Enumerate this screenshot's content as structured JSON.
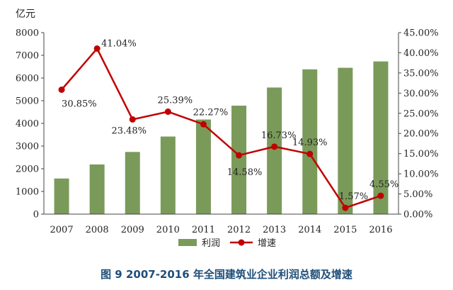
{
  "chart_data": {
    "type": "bar",
    "title": "图 9   2007-2016 年全国建筑业企业利润总额及增速",
    "categories": [
      "2007",
      "2008",
      "2009",
      "2010",
      "2011",
      "2012",
      "2013",
      "2014",
      "2015",
      "2016"
    ],
    "left_axis": {
      "unit": "亿元",
      "ylim": [
        0,
        8000
      ],
      "ticks": [
        "0",
        "1000",
        "2000",
        "3000",
        "4000",
        "5000",
        "6000",
        "7000",
        "8000"
      ]
    },
    "right_axis": {
      "ylim": [
        0,
        45
      ],
      "ticks": [
        "0.00%",
        "5.00%",
        "10.00%",
        "15.00%",
        "20.00%",
        "25.00%",
        "30.00%",
        "35.00%",
        "40.00%",
        "45.00%"
      ]
    },
    "series": [
      {
        "name": "利润",
        "type": "bar",
        "axis": "left",
        "color": "#7a9a5a",
        "values": [
          1570,
          2190,
          2740,
          3420,
          4170,
          4780,
          5580,
          6380,
          6450,
          6730
        ]
      },
      {
        "name": "增速",
        "type": "line",
        "axis": "right",
        "color": "#c00000",
        "values": [
          30.85,
          41.04,
          23.48,
          25.39,
          22.27,
          14.58,
          16.73,
          14.93,
          1.57,
          4.55
        ],
        "labels": [
          "30.85%",
          "41.04%",
          "23.48%",
          "25.39%",
          "22.27%",
          "14.58%",
          "16.73%",
          "14.93%",
          "1.57%",
          "4.55%"
        ]
      }
    ],
    "legend": {
      "placement": "bottom"
    },
    "grid": false
  }
}
